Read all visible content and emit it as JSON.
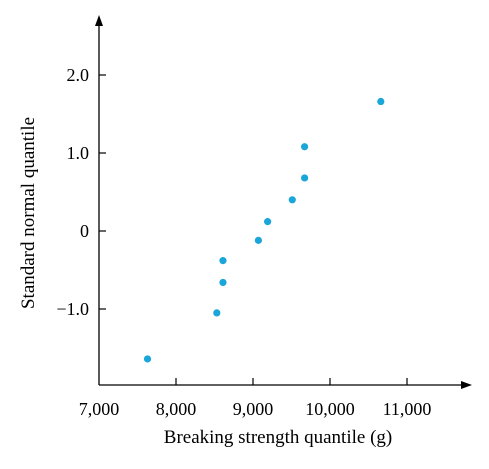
{
  "chart_data": {
    "type": "scatter",
    "title": "",
    "xlabel": "Breaking strength quantile (g)",
    "ylabel": "Standard normal quantile",
    "xlim": [
      7000,
      11700
    ],
    "ylim": [
      -2.0,
      2.7
    ],
    "x_ticks": [
      {
        "value": 7000,
        "label": "7,000"
      },
      {
        "value": 8000,
        "label": "8,000"
      },
      {
        "value": 9000,
        "label": "9,000"
      },
      {
        "value": 10000,
        "label": "10,000"
      },
      {
        "value": 11000,
        "label": "11,000"
      }
    ],
    "y_ticks": [
      {
        "value": 2.0,
        "label": "2.0"
      },
      {
        "value": 1.0,
        "label": "1.0"
      },
      {
        "value": 0,
        "label": "0"
      },
      {
        "value": -1.0,
        "label": "−1.0"
      }
    ],
    "grid": false,
    "legend": "none",
    "marker_color": "#1aa6d8",
    "series": [
      {
        "points": [
          {
            "x": 7630,
            "y": -1.64
          },
          {
            "x": 8530,
            "y": -1.05
          },
          {
            "x": 8610,
            "y": -0.66
          },
          {
            "x": 8610,
            "y": -0.38
          },
          {
            "x": 9070,
            "y": -0.12
          },
          {
            "x": 9190,
            "y": 0.12
          },
          {
            "x": 9510,
            "y": 0.4
          },
          {
            "x": 9670,
            "y": 0.68
          },
          {
            "x": 9670,
            "y": 1.08
          },
          {
            "x": 10660,
            "y": 1.66
          }
        ]
      }
    ]
  }
}
